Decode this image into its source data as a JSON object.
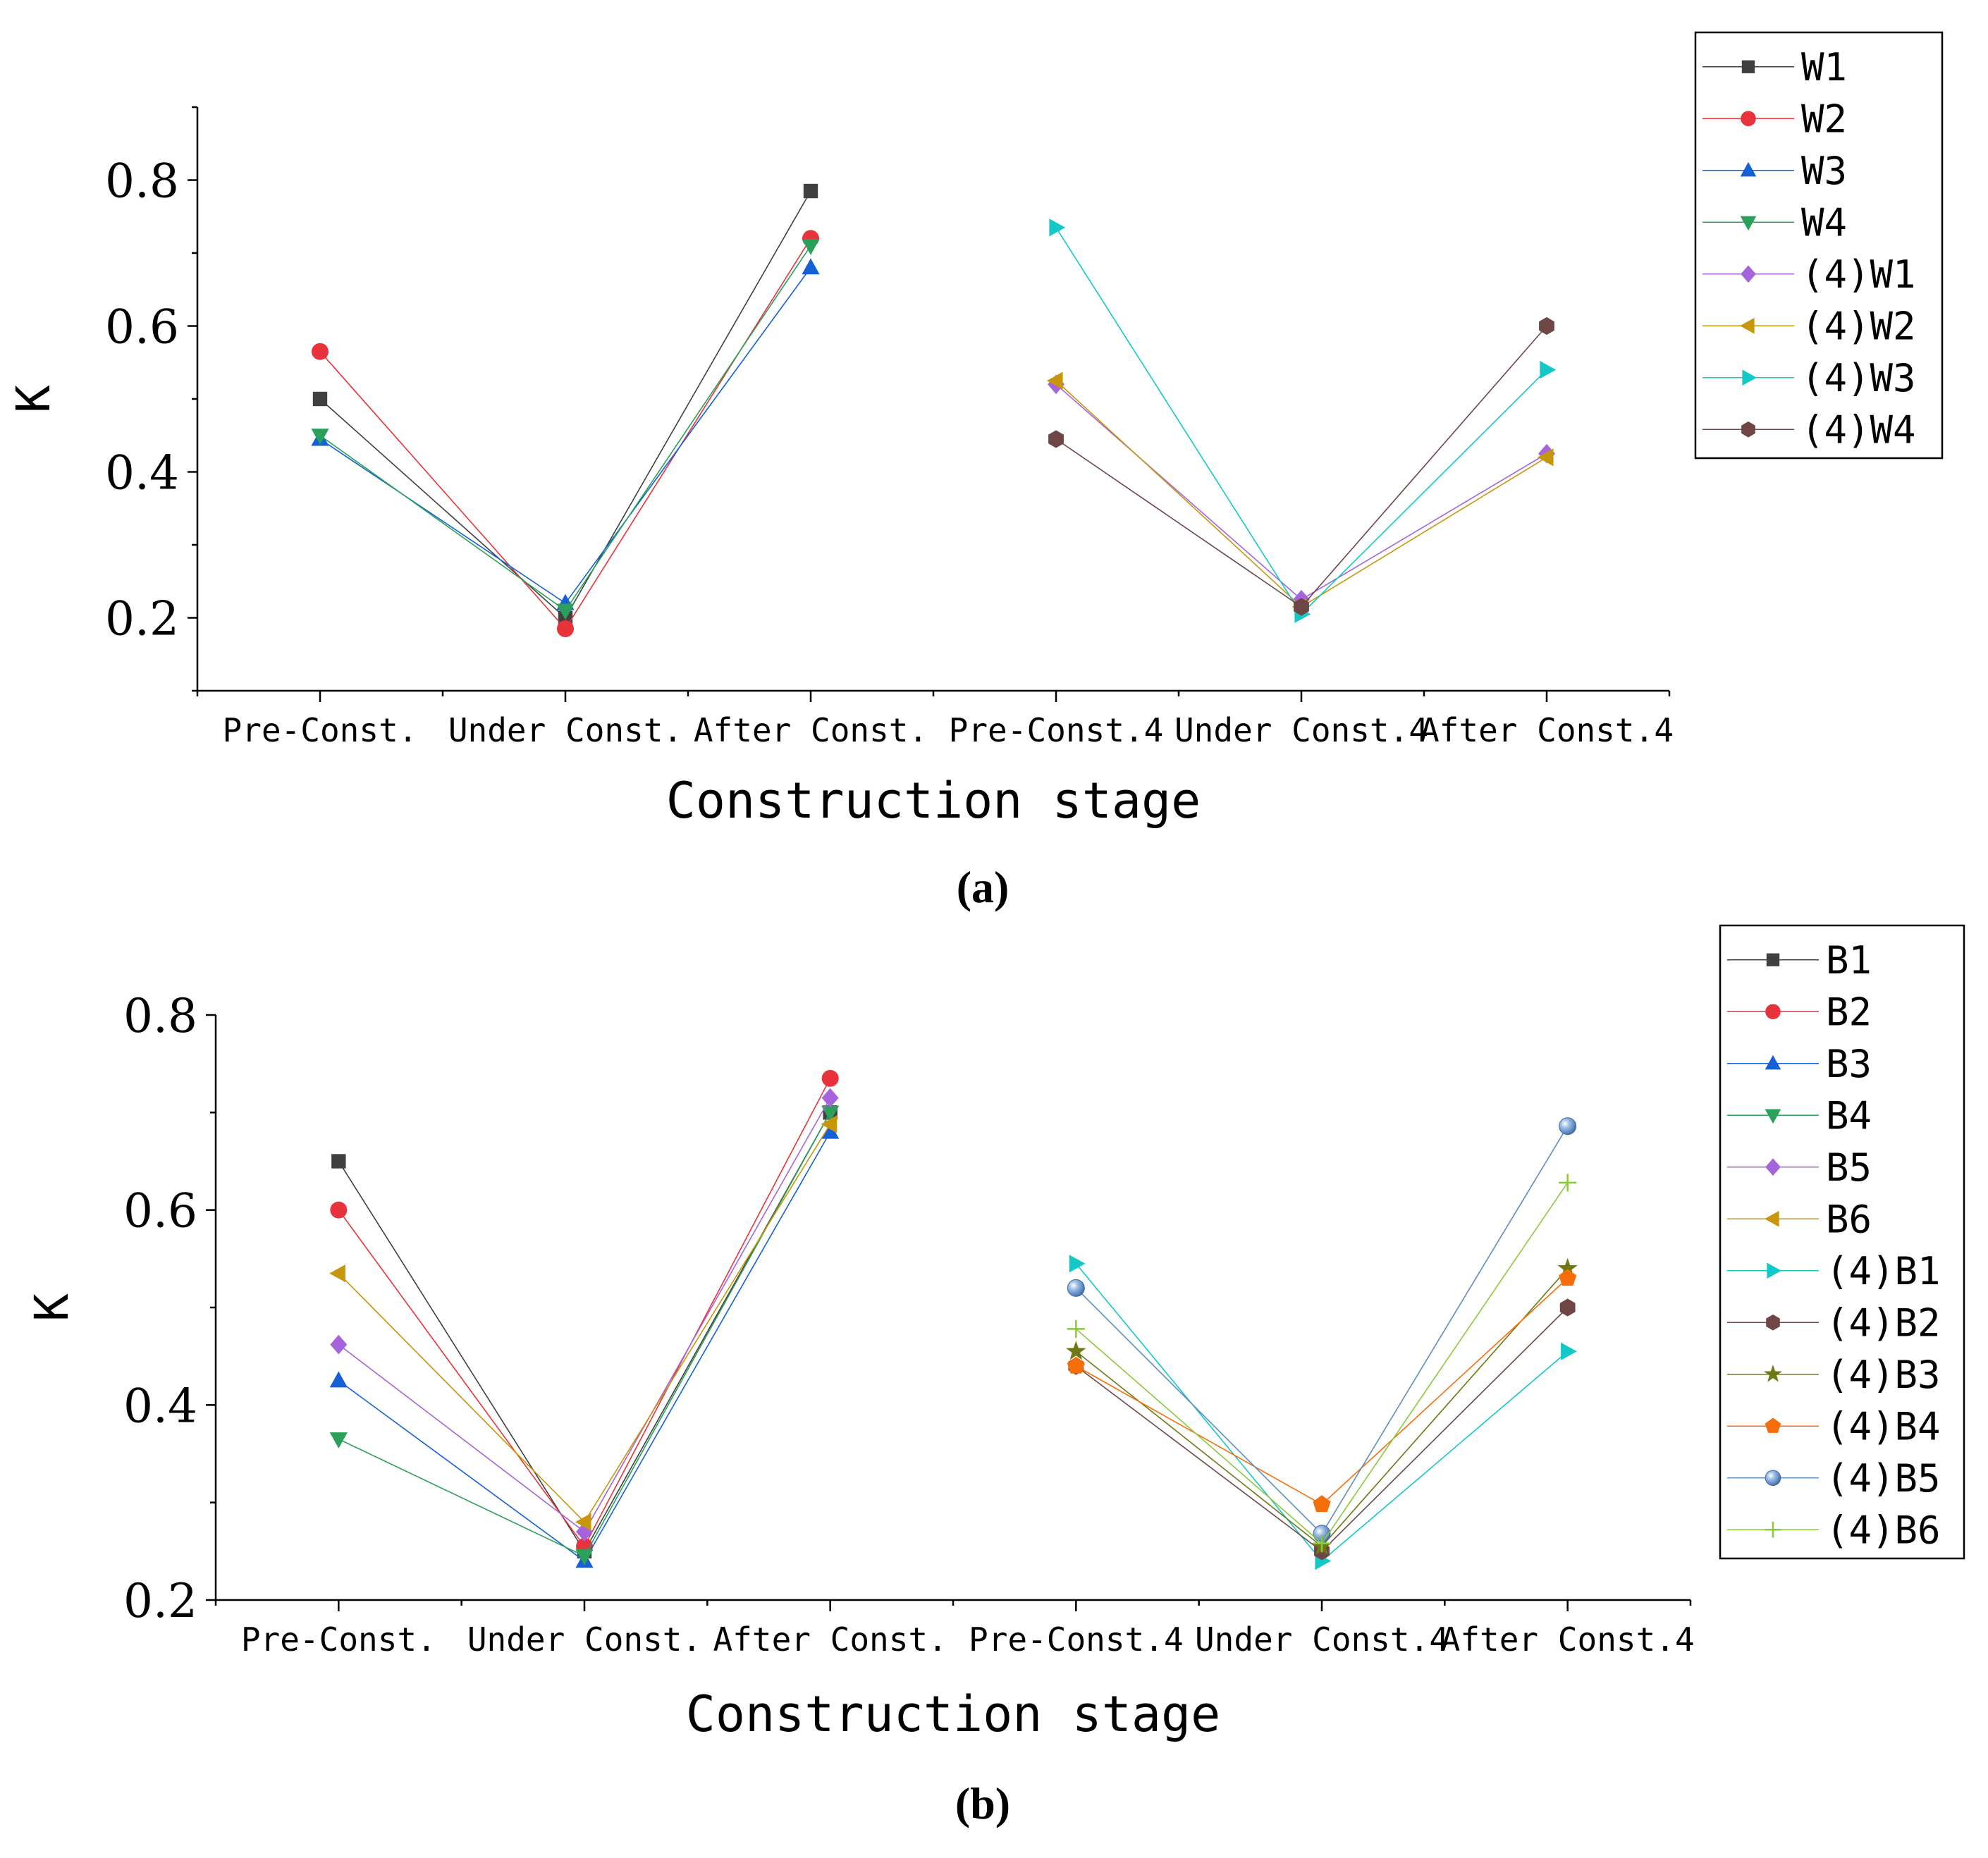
{
  "chart_data": [
    {
      "type": "line",
      "panel_label": "(a)",
      "title": "",
      "xlabel": "Construction stage",
      "ylabel": "K",
      "ylim": [
        0.1,
        0.9
      ],
      "yticks": [
        0.2,
        0.4,
        0.6,
        0.8
      ],
      "ytick_labels": [
        "0.2",
        "0.4",
        "0.6",
        "0.8"
      ],
      "categories": [
        "Pre-Const.",
        "Under Const.",
        "After Const.",
        "Pre-Const.4",
        "Under Const.4",
        "After Const.4"
      ],
      "legend_position": "top-right, outside plot",
      "series": [
        {
          "name": "W1",
          "color": "#404040",
          "marker": "square",
          "values": [
            0.5,
            0.2,
            0.785,
            null,
            null,
            null
          ]
        },
        {
          "name": "W2",
          "color": "#e8323c",
          "marker": "circle",
          "values": [
            0.565,
            0.185,
            0.72,
            null,
            null,
            null
          ]
        },
        {
          "name": "W3",
          "color": "#1560d4",
          "marker": "triangle-up",
          "values": [
            0.445,
            0.22,
            0.68,
            null,
            null,
            null
          ]
        },
        {
          "name": "W4",
          "color": "#2aa05a",
          "marker": "triangle-down",
          "values": [
            0.45,
            0.21,
            0.71,
            null,
            null,
            null
          ]
        },
        {
          "name": "(4)W1",
          "color": "#a564dc",
          "marker": "diamond",
          "values": [
            null,
            null,
            null,
            0.52,
            0.225,
            0.425
          ]
        },
        {
          "name": "(4)W2",
          "color": "#c8960a",
          "marker": "triangle-left",
          "values": [
            null,
            null,
            null,
            0.525,
            0.215,
            0.42
          ]
        },
        {
          "name": "(4)W3",
          "color": "#14c8c8",
          "marker": "triangle-right",
          "values": [
            null,
            null,
            null,
            0.735,
            0.205,
            0.54
          ]
        },
        {
          "name": "(4)W4",
          "color": "#6e4646",
          "marker": "hexagon",
          "values": [
            null,
            null,
            null,
            0.445,
            0.215,
            0.6
          ]
        }
      ]
    },
    {
      "type": "line",
      "panel_label": "(b)",
      "title": "",
      "xlabel": "Construction stage",
      "ylabel": "K",
      "ylim": [
        0.2,
        0.8
      ],
      "yticks": [
        0.2,
        0.4,
        0.6,
        0.8
      ],
      "ytick_labels": [
        "0.2",
        "0.4",
        "0.6",
        "0.8"
      ],
      "categories": [
        "Pre-Const.",
        "Under Const.",
        "After Const.",
        "Pre-Const.4",
        "Under Const.4",
        "After Const.4"
      ],
      "legend_position": "top-right, outside plot",
      "series": [
        {
          "name": "B1",
          "color": "#404040",
          "marker": "square",
          "values": [
            0.65,
            0.25,
            0.7,
            null,
            null,
            null
          ]
        },
        {
          "name": "B2",
          "color": "#e8323c",
          "marker": "circle",
          "values": [
            0.6,
            0.255,
            0.735,
            null,
            null,
            null
          ]
        },
        {
          "name": "B3",
          "color": "#1560d4",
          "marker": "triangle-up",
          "values": [
            0.425,
            0.24,
            0.68,
            null,
            null,
            null
          ]
        },
        {
          "name": "B4",
          "color": "#2aa05a",
          "marker": "triangle-down",
          "values": [
            0.365,
            0.245,
            0.7,
            null,
            null,
            null
          ]
        },
        {
          "name": "B5",
          "color": "#a564dc",
          "marker": "diamond",
          "values": [
            0.462,
            0.27,
            0.715,
            null,
            null,
            null
          ]
        },
        {
          "name": "B6",
          "color": "#c8960a",
          "marker": "triangle-left",
          "values": [
            0.535,
            0.28,
            0.688,
            null,
            null,
            null
          ]
        },
        {
          "name": "(4)B1",
          "color": "#14c8c8",
          "marker": "triangle-right",
          "values": [
            null,
            null,
            null,
            0.545,
            0.24,
            0.455
          ]
        },
        {
          "name": "(4)B2",
          "color": "#6e4646",
          "marker": "hexagon",
          "values": [
            null,
            null,
            null,
            0.44,
            0.25,
            0.5
          ]
        },
        {
          "name": "(4)B3",
          "color": "#6e7814",
          "marker": "star",
          "values": [
            null,
            null,
            null,
            0.455,
            0.255,
            0.54
          ]
        },
        {
          "name": "(4)B4",
          "color": "#f56e0a",
          "marker": "pentagon",
          "values": [
            null,
            null,
            null,
            0.44,
            0.298,
            0.53
          ]
        },
        {
          "name": "(4)B5",
          "color": "#5f8cc3",
          "marker": "sphere",
          "values": [
            null,
            null,
            null,
            0.52,
            0.268,
            0.686
          ]
        },
        {
          "name": "(4)B6",
          "color": "#8cc83c",
          "marker": "plus",
          "values": [
            null,
            null,
            null,
            0.478,
            0.258,
            0.628
          ]
        }
      ]
    }
  ]
}
